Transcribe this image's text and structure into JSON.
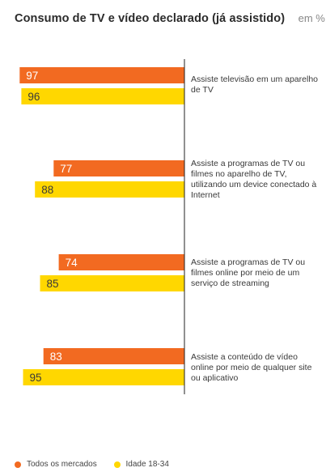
{
  "header": {
    "title": "Consumo de TV e vídeo declarado (já assistido)",
    "unit": "em %"
  },
  "legend": [
    {
      "label": "Todos os mercados",
      "color": "#F26A21"
    },
    {
      "label": "Idade 18-34",
      "color": "#FFD700"
    }
  ],
  "chart_data": {
    "type": "bar",
    "orientation": "horizontal",
    "title": "Consumo de TV e vídeo declarado (já assistido)",
    "unit": "em %",
    "categories": [
      "Assiste televisão em um aparelho de TV",
      "Assiste a programas de TV ou filmes no aparelho de TV, utilizando um device conectado à Internet",
      "Assiste a programas de TV ou filmes online por meio de um serviço de streaming",
      "Assiste a conteúdo de vídeo online por meio de qualquer site ou aplicativo"
    ],
    "series": [
      {
        "name": "Todos os mercados",
        "values": [
          97,
          77,
          74,
          83
        ],
        "color": "#F26A21",
        "label_color": "#ffffff"
      },
      {
        "name": "Idade 18-34",
        "values": [
          96,
          88,
          85,
          95
        ],
        "color": "#FFD700",
        "label_color": "#3a3a3a"
      }
    ],
    "xlim": [
      0,
      100
    ],
    "grid": false,
    "legend_position": "bottom-left"
  }
}
